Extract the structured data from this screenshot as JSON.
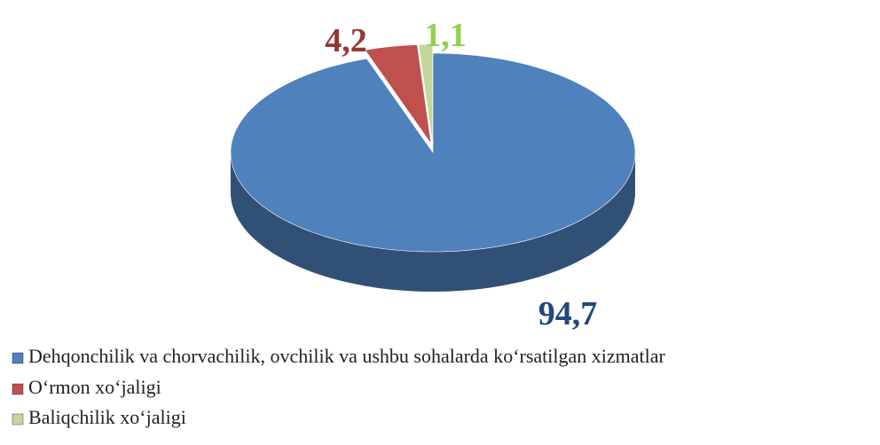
{
  "chart_data": {
    "type": "pie",
    "categories": [
      "Dehqonchilik va chorvachilik, ovchilik va ushbu sohalarda ko‘rsatilgan xizmatlar",
      "O‘rmon xo‘jaligi",
      "Baliqchilik xo‘jaligi"
    ],
    "values": [
      94.7,
      4.2,
      1.1
    ],
    "value_labels": [
      "94,7",
      "4,2",
      "1,1"
    ],
    "colors": [
      "#4f81bd",
      "#c0504d",
      "#c3d69b"
    ],
    "label_colors": [
      "#1f497d",
      "#953735",
      "#92d050"
    ],
    "legend": "bottom-left"
  }
}
